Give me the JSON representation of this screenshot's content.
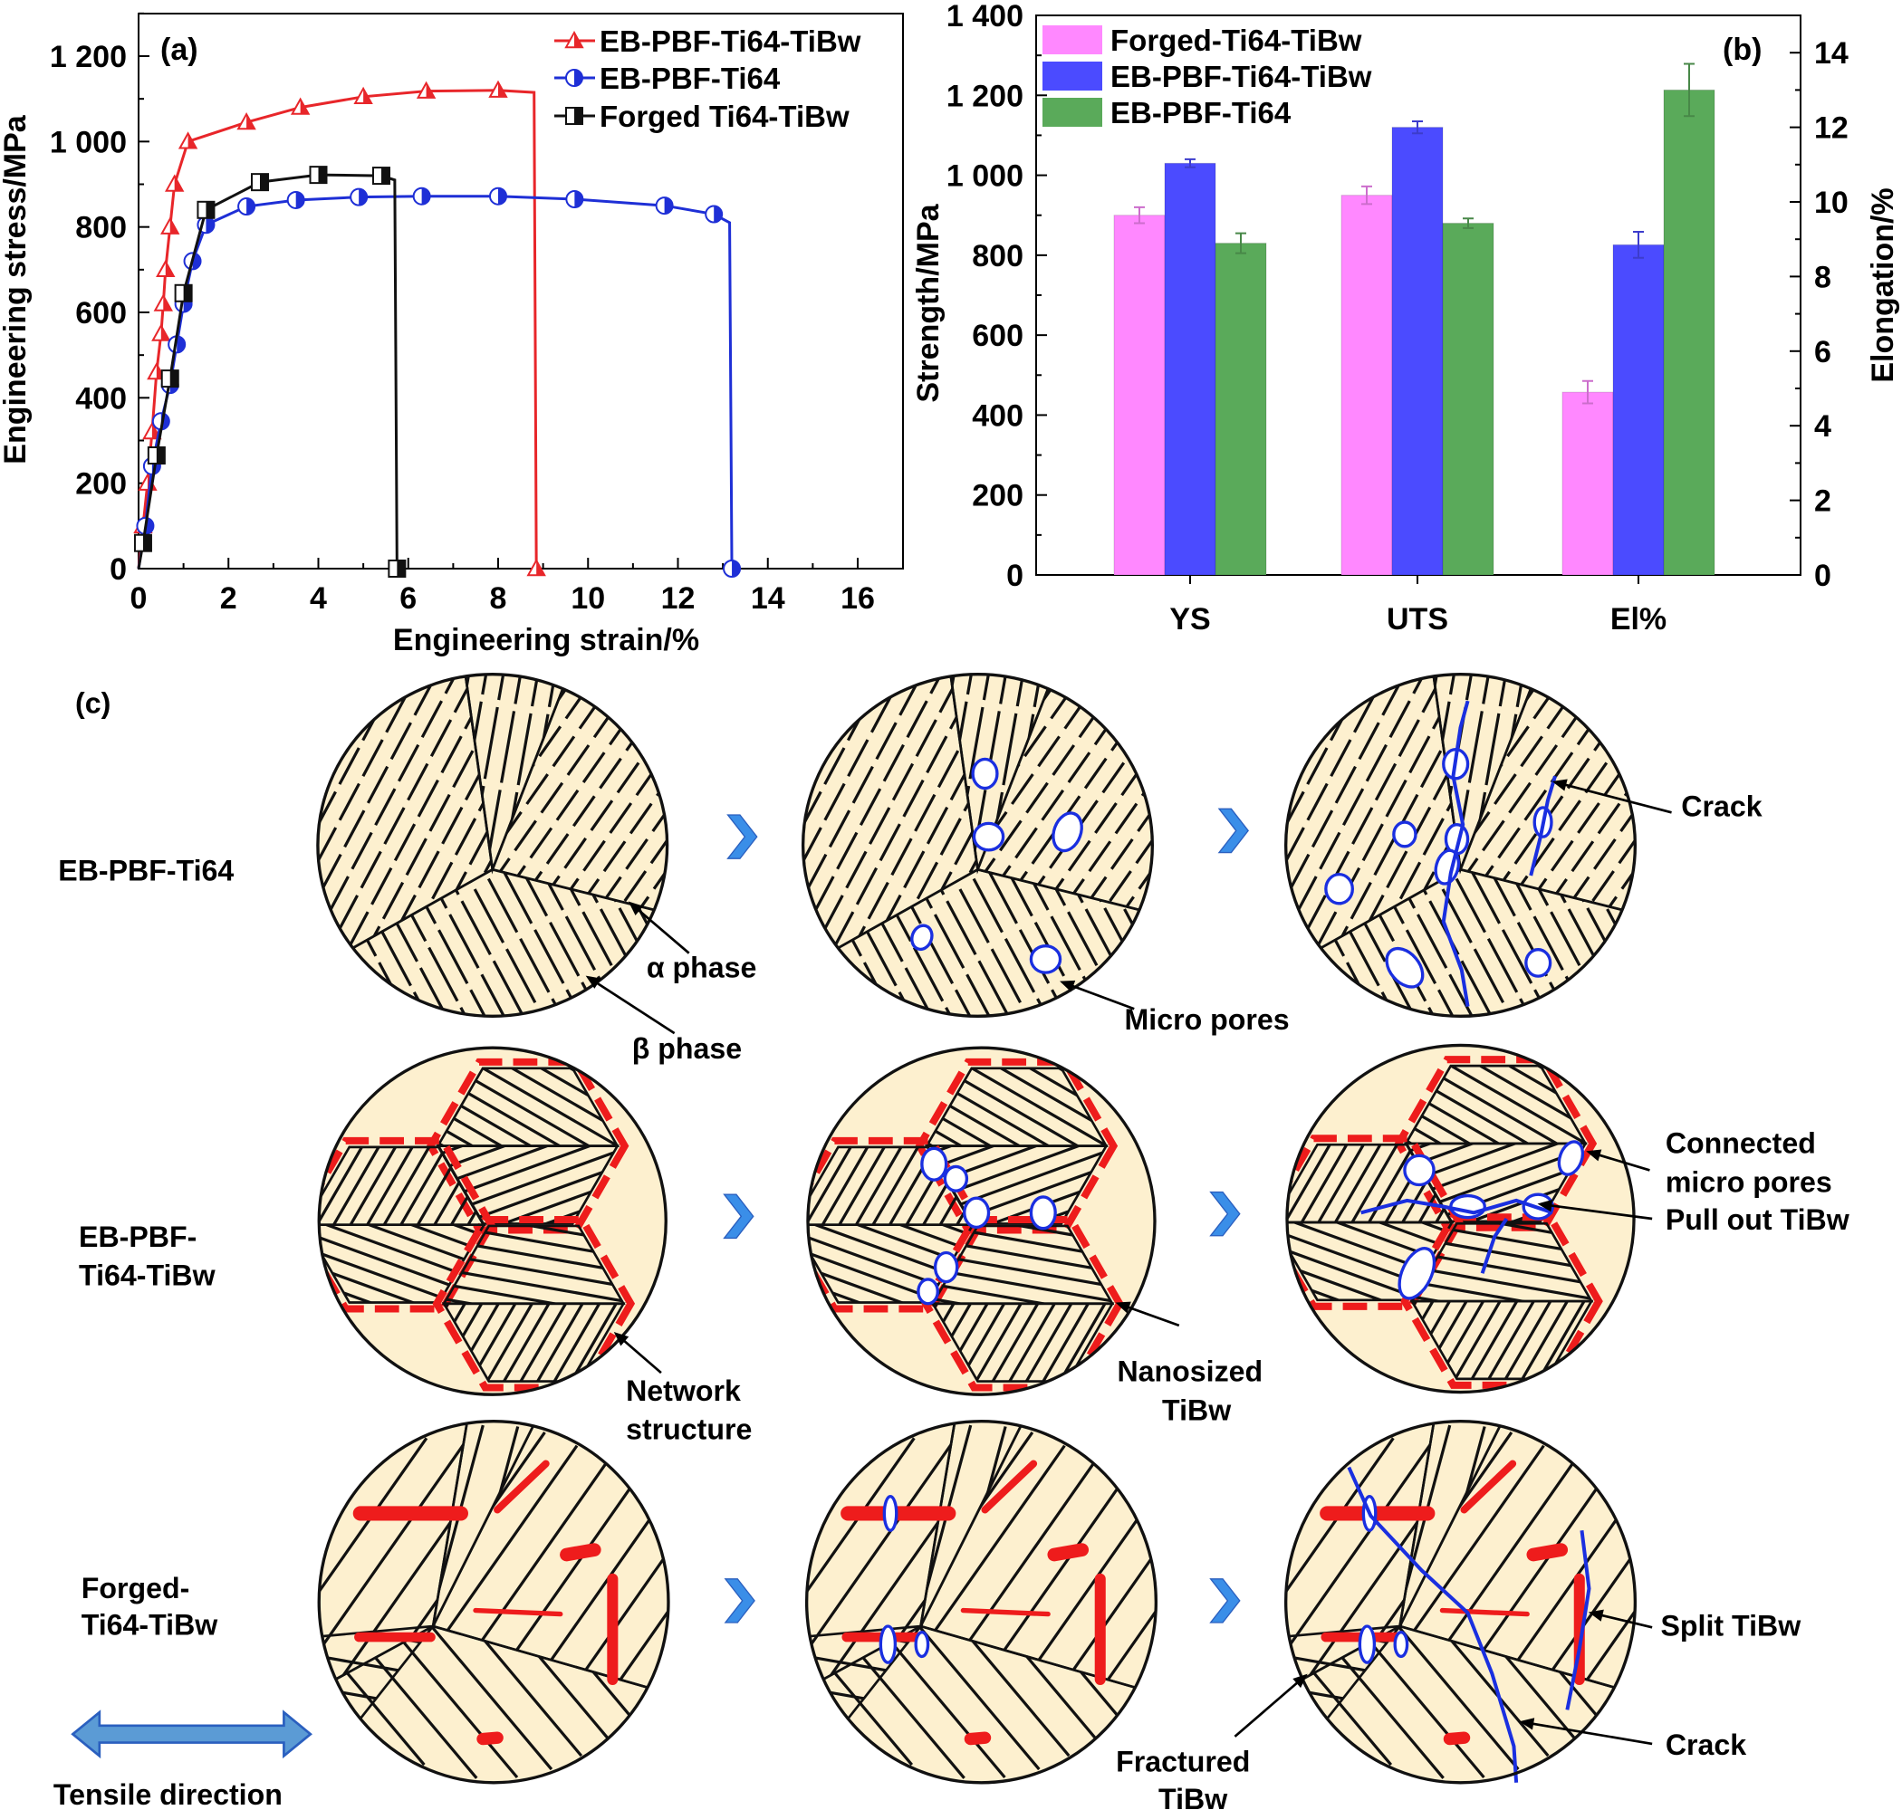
{
  "chart_data": [
    {
      "type": "line",
      "panel_label": "(a)",
      "xlabel": "Engineering strain/%",
      "ylabel": "Engineering stress/MPa",
      "xlim": [
        0,
        17
      ],
      "ylim": [
        0,
        1300
      ],
      "xticks": [
        "0",
        "2",
        "4",
        "6",
        "8",
        "10",
        "12",
        "14",
        "16"
      ],
      "yticks": [
        "0",
        "200",
        "400",
        "600",
        "800",
        "1 000",
        "1 200"
      ],
      "legend": "top-right",
      "grid": false,
      "series": [
        {
          "name": "EB-PBF-Ti64-TiBw",
          "color": "#e8262a",
          "marker": "triangle-half",
          "points": [
            [
              0,
              0
            ],
            [
              0.1,
              100
            ],
            [
              0.2,
              200
            ],
            [
              0.3,
              320
            ],
            [
              0.4,
              460
            ],
            [
              0.5,
              550
            ],
            [
              0.55,
              620
            ],
            [
              0.6,
              700
            ],
            [
              0.7,
              800
            ],
            [
              0.8,
              900
            ],
            [
              1.1,
              1000
            ],
            [
              2.4,
              1045
            ],
            [
              3.6,
              1080
            ],
            [
              5.0,
              1105
            ],
            [
              6.4,
              1118
            ],
            [
              8.0,
              1120
            ],
            [
              8.8,
              1115
            ],
            [
              8.85,
              0
            ]
          ]
        },
        {
          "name": "EB-PBF-Ti64",
          "color": "#1e2fd6",
          "marker": "circle-half",
          "points": [
            [
              0,
              0
            ],
            [
              0.15,
              100
            ],
            [
              0.3,
              240
            ],
            [
              0.5,
              345
            ],
            [
              0.7,
              430
            ],
            [
              0.85,
              525
            ],
            [
              1.0,
              620
            ],
            [
              1.2,
              720
            ],
            [
              1.5,
              805
            ],
            [
              2.4,
              848
            ],
            [
              3.5,
              863
            ],
            [
              4.9,
              870
            ],
            [
              6.3,
              872
            ],
            [
              8.0,
              872
            ],
            [
              9.7,
              865
            ],
            [
              11.7,
              850
            ],
            [
              12.8,
              830
            ],
            [
              13.15,
              810
            ],
            [
              13.2,
              0
            ]
          ]
        },
        {
          "name": "Forged Ti64-TiBw",
          "color": "#111111",
          "marker": "square-half",
          "points": [
            [
              0,
              0
            ],
            [
              0.1,
              60
            ],
            [
              0.4,
              265
            ],
            [
              0.7,
              445
            ],
            [
              1.0,
              645
            ],
            [
              1.5,
              840
            ],
            [
              2.7,
              905
            ],
            [
              4.0,
              922
            ],
            [
              5.4,
              920
            ],
            [
              5.7,
              910
            ],
            [
              5.75,
              0
            ]
          ]
        }
      ]
    },
    {
      "type": "bar",
      "panel_label": "(b)",
      "categories": [
        "YS",
        "UTS",
        "El%"
      ],
      "category_axis": [
        "left",
        "left",
        "right"
      ],
      "ylabel": "Strength/MPa",
      "y2label": "Elongation/%",
      "ylim": [
        0,
        1400
      ],
      "y2lim": [
        0,
        15
      ],
      "yticks": [
        "0",
        "200",
        "400",
        "600",
        "800",
        "1 000",
        "1 200",
        "1 400"
      ],
      "y2ticks": [
        "0",
        "2",
        "4",
        "6",
        "8",
        "10",
        "12",
        "14"
      ],
      "legend": "top-left",
      "series": [
        {
          "name": "Forged-Ti64-TiBw",
          "color": "#ff88ff",
          "values": [
            900,
            950,
            4.9
          ],
          "errors": [
            20,
            22,
            0.3
          ]
        },
        {
          "name": "EB-PBF-Ti64-TiBw",
          "color": "#4b4bff",
          "values": [
            1030,
            1120,
            8.85
          ],
          "errors": [
            10,
            15,
            0.35
          ]
        },
        {
          "name": "EB-PBF-Ti64",
          "color": "#5aaa5a",
          "values": [
            830,
            880,
            13.0
          ],
          "errors": [
            25,
            12,
            0.7
          ]
        }
      ]
    }
  ],
  "schematic": {
    "panel_label": "(c)",
    "rows": [
      {
        "label_lines": [
          "EB-PBF-Ti64"
        ]
      },
      {
        "label_lines": [
          "EB-PBF-",
          "Ti64-TiBw"
        ]
      },
      {
        "label_lines": [
          "Forged-",
          "Ti64-TiBw"
        ]
      }
    ],
    "annotations": {
      "alpha_phase": "α phase",
      "beta_phase": "β phase",
      "micro_pores": "Micro pores",
      "crack_top": "Crack",
      "network_1": "Network",
      "network_2": "structure",
      "nano_1": "Nanosized",
      "nano_2": "TiBw",
      "connected_1": "Connected",
      "connected_2": "micro pores",
      "pull_out": "Pull out TiBw",
      "split": "Split TiBw",
      "crack_bottom": "Crack",
      "fractured_1": "Fractured",
      "fractured_2": "TiBw"
    },
    "tensile_direction": "Tensile direction",
    "colors": {
      "grain": "#fdf0cf",
      "tibw": "#ee1c1c",
      "pore": "#1a2fe0",
      "arrow": "#3a8ee8"
    }
  }
}
